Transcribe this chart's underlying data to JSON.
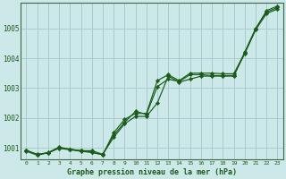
{
  "title": "Graphe pression niveau de la mer (hPa)",
  "background_color": "#cce8e8",
  "grid_color": "#aacccc",
  "line_color": "#1a5c1a",
  "marker_color": "#1a5c1a",
  "xlim": [
    -0.5,
    23.5
  ],
  "ylim": [
    1000.6,
    1005.85
  ],
  "yticks": [
    1001,
    1002,
    1003,
    1004,
    1005
  ],
  "xticks": [
    0,
    1,
    2,
    3,
    4,
    5,
    6,
    7,
    8,
    9,
    10,
    11,
    12,
    13,
    14,
    15,
    16,
    17,
    18,
    19,
    20,
    21,
    22,
    23
  ],
  "series": [
    [
      1000.9,
      1000.78,
      1000.82,
      1001.0,
      1000.95,
      1000.9,
      1000.9,
      1000.78,
      1001.35,
      1001.8,
      1002.05,
      1002.05,
      1002.5,
      1003.4,
      1003.2,
      1003.3,
      1003.4,
      1003.4,
      1003.4,
      1003.4,
      1004.2,
      1005.0,
      1005.55,
      1005.7
    ],
    [
      1000.88,
      1000.75,
      1000.83,
      1000.98,
      1000.93,
      1000.88,
      1000.84,
      1000.76,
      1001.5,
      1001.95,
      1002.15,
      1002.15,
      1003.25,
      1003.45,
      1003.25,
      1003.5,
      1003.5,
      1003.5,
      1003.48,
      1003.48,
      1004.18,
      1004.98,
      1005.6,
      1005.75
    ],
    [
      1000.92,
      1000.77,
      1000.84,
      1001.02,
      1000.95,
      1000.9,
      1000.85,
      1000.77,
      1001.42,
      1001.85,
      1002.22,
      1002.12,
      1003.05,
      1003.3,
      1003.22,
      1003.45,
      1003.45,
      1003.42,
      1003.42,
      1003.42,
      1004.15,
      1004.95,
      1005.5,
      1005.65
    ]
  ]
}
